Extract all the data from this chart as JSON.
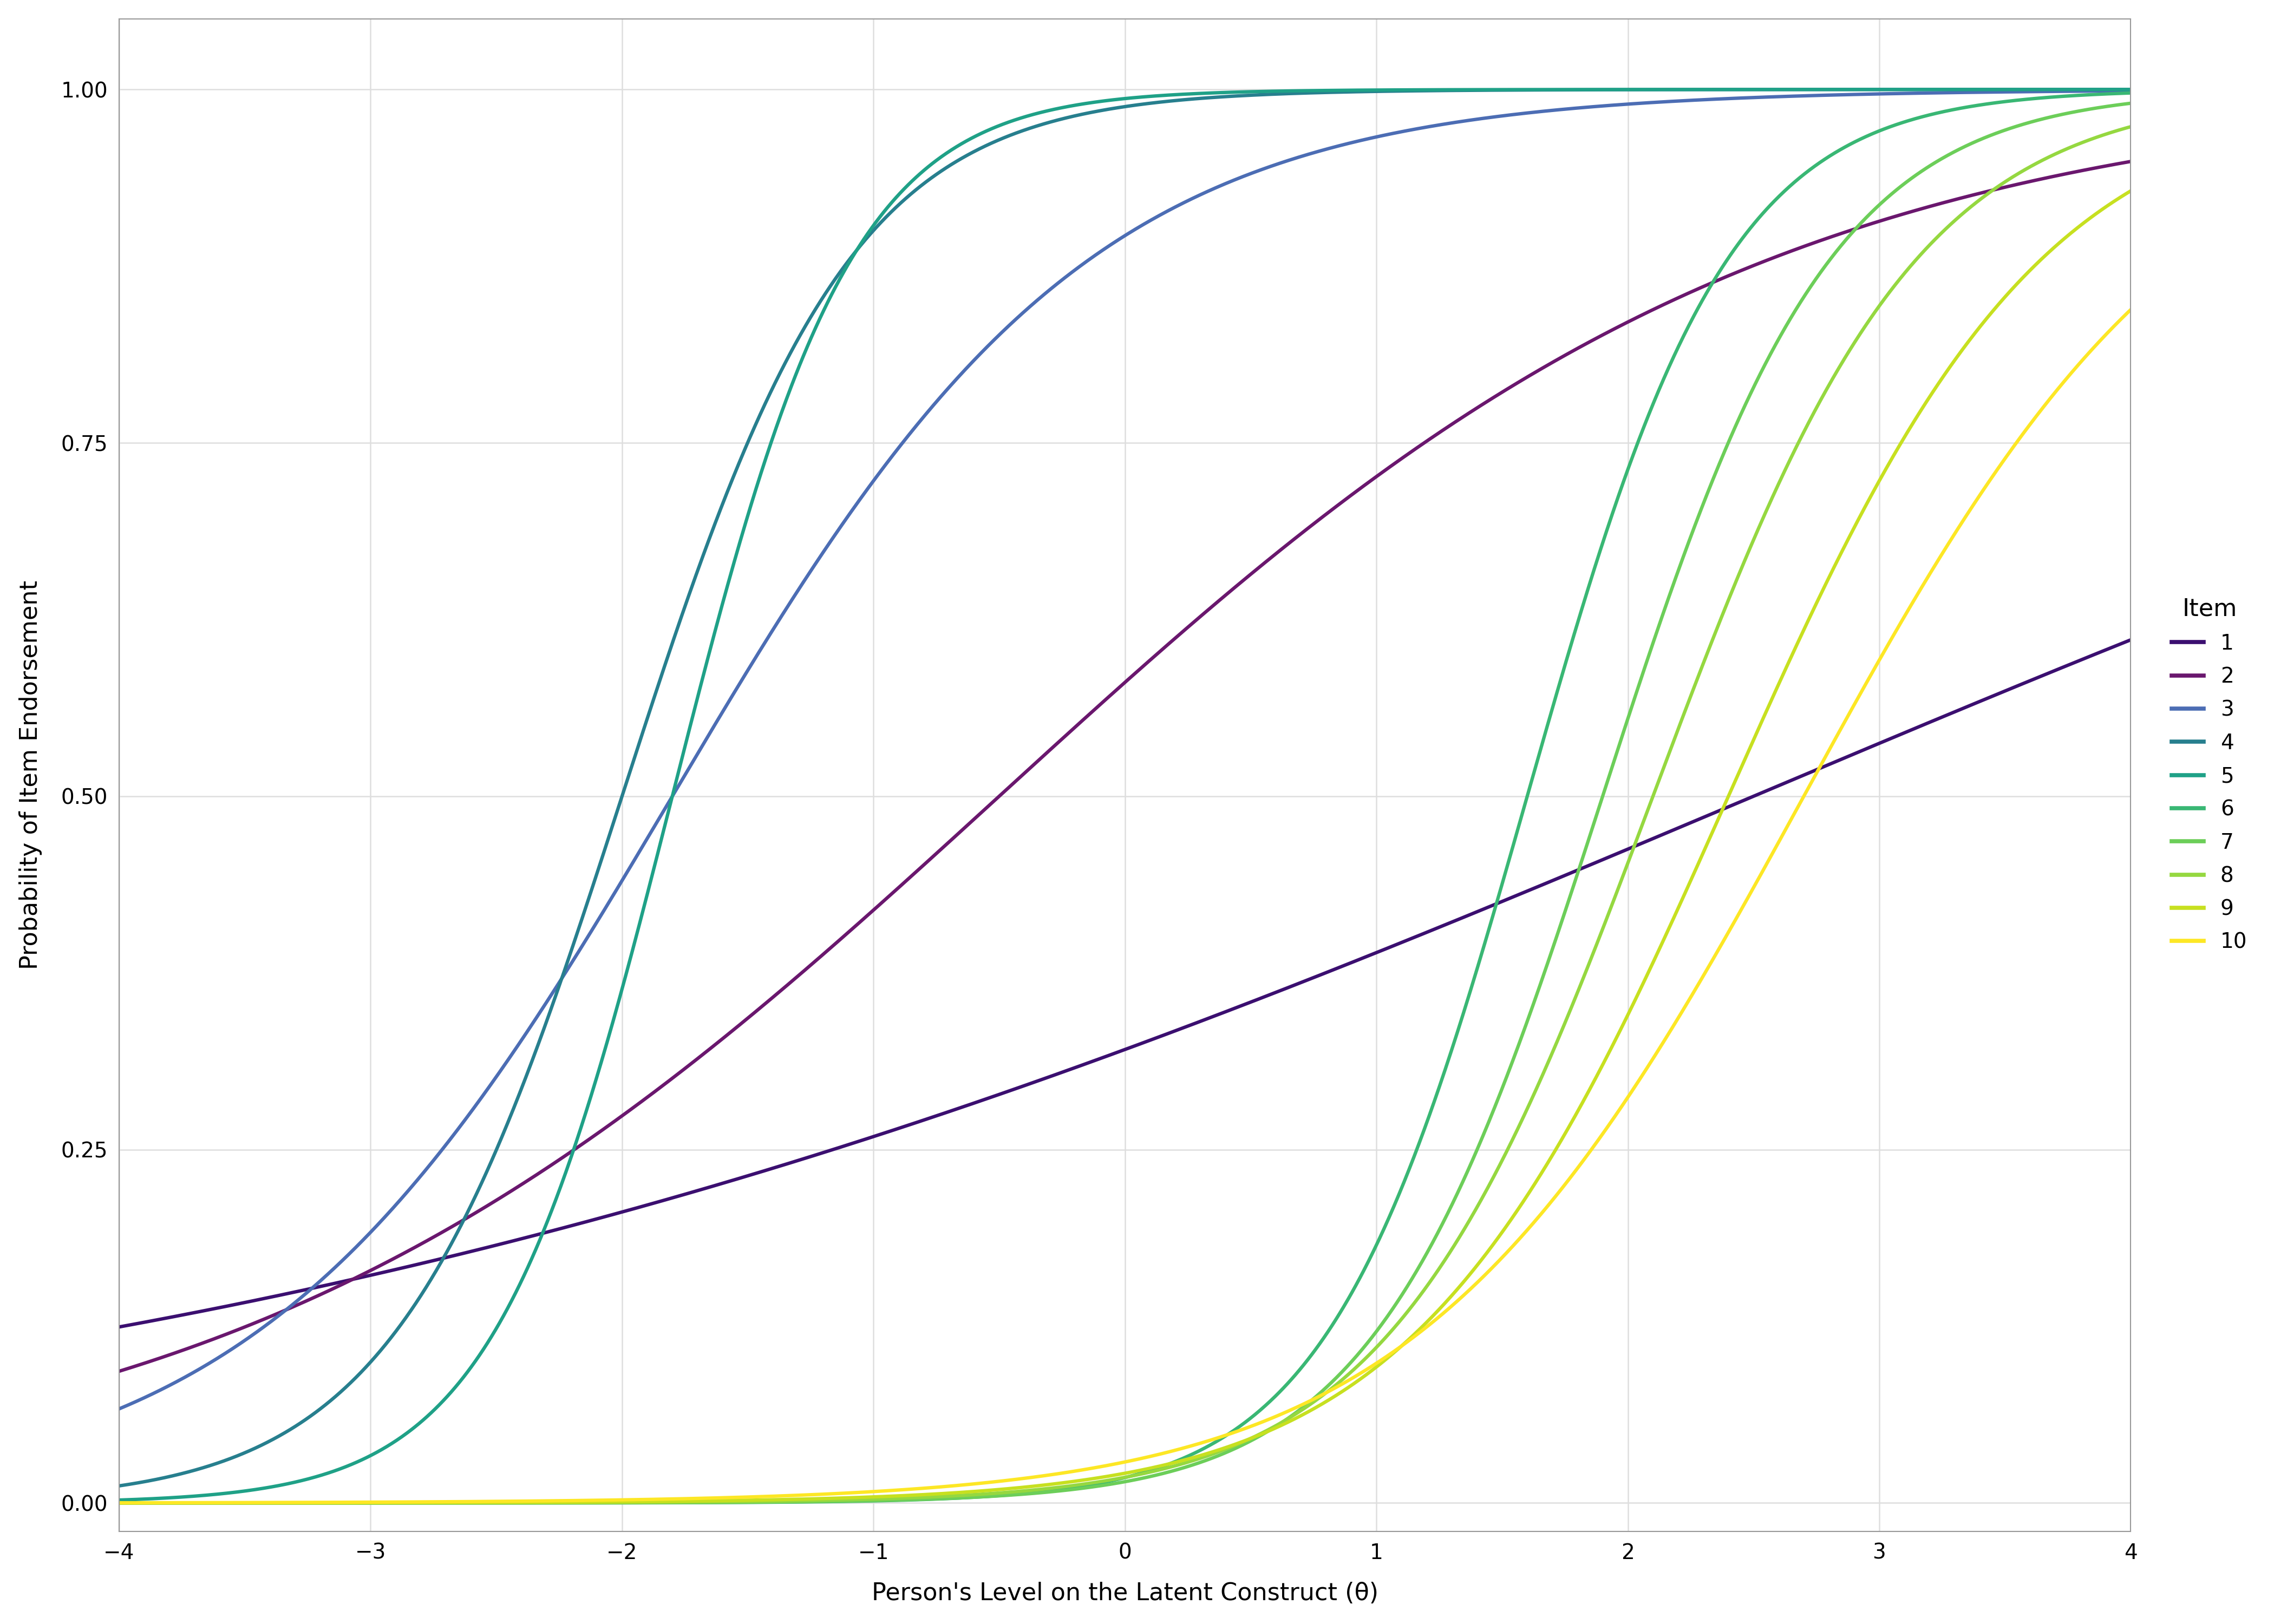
{
  "title": "",
  "xlabel": "Person's Level on the Latent Construct (θ)",
  "ylabel": "Probability of Item Endorsement",
  "xlim": [
    -4,
    4
  ],
  "ylim": [
    -0.02,
    1.05
  ],
  "xticks": [
    -4,
    -3,
    -2,
    -1,
    0,
    1,
    2,
    3,
    4
  ],
  "yticks": [
    0.0,
    0.25,
    0.5,
    0.75,
    1.0
  ],
  "background_color": "#ffffff",
  "panel_background": "#ffffff",
  "grid_color": "#dedede",
  "line_width": 4.5,
  "items": [
    {
      "id": 1,
      "a": 0.3,
      "b": 2.5,
      "color": "#3B0F70"
    },
    {
      "id": 2,
      "a": 0.65,
      "b": -0.5,
      "color": "#6A176E"
    },
    {
      "id": 3,
      "a": 1.2,
      "b": -1.8,
      "color": "#4C6DB4"
    },
    {
      "id": 4,
      "a": 2.2,
      "b": -2.0,
      "color": "#277F8E"
    },
    {
      "id": 5,
      "a": 2.8,
      "b": -1.8,
      "color": "#1FA187"
    },
    {
      "id": 6,
      "a": 2.5,
      "b": 1.6,
      "color": "#39B774"
    },
    {
      "id": 7,
      "a": 2.2,
      "b": 1.9,
      "color": "#6CCE59"
    },
    {
      "id": 8,
      "a": 1.9,
      "b": 2.1,
      "color": "#95D840"
    },
    {
      "id": 9,
      "a": 1.6,
      "b": 2.4,
      "color": "#C7E020"
    },
    {
      "id": 10,
      "a": 1.3,
      "b": 2.7,
      "color": "#FDE725"
    }
  ],
  "legend_title": "Item",
  "legend_fontsize": 28,
  "axis_fontsize": 32,
  "tick_fontsize": 28
}
